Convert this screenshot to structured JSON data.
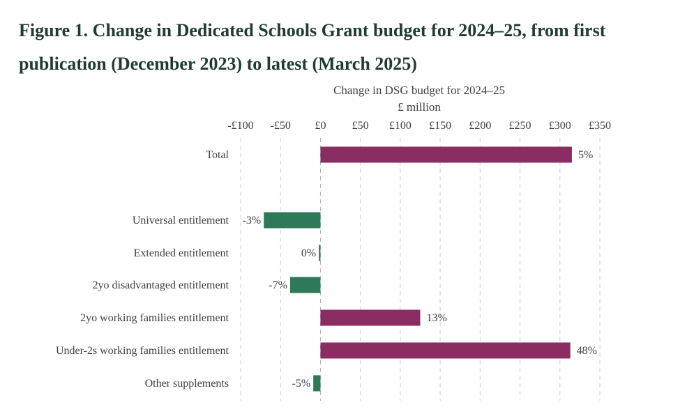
{
  "figure": {
    "title": "Figure 1. Change in Dedicated Schools Grant budget for 2024–25, from first publication (December 2023) to latest (March 2025)"
  },
  "colors": {
    "positive": "#8b2d62",
    "negative": "#2e7a58",
    "title": "#1f3b33"
  },
  "chart_data": {
    "type": "bar",
    "orientation": "horizontal",
    "title": "Change in DSG budget for 2024–25",
    "subtitle": "£ million",
    "xlabel": "",
    "ylabel": "",
    "xlim": [
      -100,
      350
    ],
    "x_ticks": [
      -100,
      -50,
      0,
      50,
      100,
      150,
      200,
      250,
      300,
      350
    ],
    "x_tick_labels": [
      "-£100",
      "-£50",
      "£0",
      "£50",
      "£100",
      "£150",
      "£200",
      "£250",
      "£300",
      "£350"
    ],
    "axis_position": "top",
    "grid": true,
    "categories": [
      "Total",
      "Universal entitlement",
      "Extended entitlement",
      "2yo disadvantaged entitlement",
      "2yo working families entitlement",
      "Under-2s working families entitlement",
      "Other supplements"
    ],
    "values": [
      315,
      -71,
      -2,
      -38,
      125,
      313,
      -9
    ],
    "data_labels": [
      "5%",
      "-3%",
      "0%",
      "-7%",
      "13%",
      "48%",
      "-5%"
    ]
  }
}
